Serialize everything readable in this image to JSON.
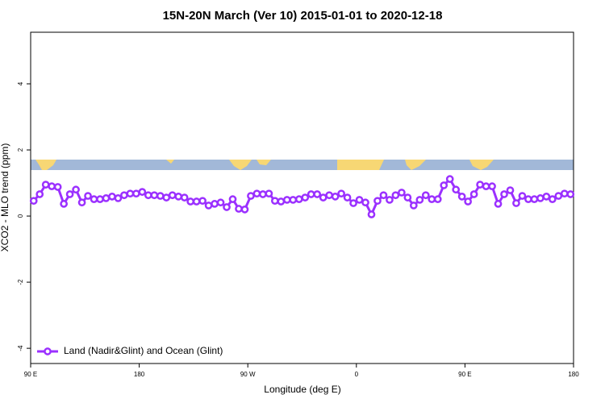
{
  "chart_data": {
    "type": "line",
    "title": "15N-20N March (Ver 10)   2015-01-01 to 2020-12-18",
    "x_label": "Longitude (deg E)",
    "y_label": "XCO2 - MLO trend (ppm)",
    "xlim": [
      90,
      540
    ],
    "xticks": [
      {
        "value": 90,
        "label": "90 E"
      },
      {
        "value": 180,
        "label": "180"
      },
      {
        "value": 270,
        "label": "90 W"
      },
      {
        "value": 360,
        "label": "0"
      },
      {
        "value": 450,
        "label": "90 E"
      },
      {
        "value": 540,
        "label": "180"
      }
    ],
    "ylim": [
      -4.46,
      5.56
    ],
    "yticks": [
      -4,
      -2,
      0,
      2,
      4
    ],
    "legend": "bottom-left",
    "x": [
      92.5,
      97.5,
      102.5,
      107.5,
      112.5,
      117.5,
      122.5,
      127.5,
      132.5,
      137.5,
      142.5,
      147.5,
      152.5,
      157.5,
      162.5,
      167.5,
      172.5,
      177.5,
      182.5,
      187.5,
      192.5,
      197.5,
      202.5,
      207.5,
      212.5,
      217.5,
      222.5,
      227.5,
      232.5,
      237.5,
      242.5,
      247.5,
      252.5,
      257.5,
      262.5,
      267.5,
      272.5,
      277.5,
      282.5,
      287.5,
      292.5,
      297.5,
      302.5,
      307.5,
      312.5,
      317.5,
      322.5,
      327.5,
      332.5,
      337.5,
      342.5,
      347.5,
      352.5,
      357.5,
      362.5,
      367.5,
      372.5,
      377.5,
      382.5,
      387.5,
      392.5,
      397.5,
      402.5,
      407.5,
      412.5,
      417.5,
      422.5,
      427.5,
      432.5,
      437.5,
      442.5,
      447.5,
      452.5,
      457.5,
      462.5,
      467.5,
      472.5,
      477.5,
      482.5,
      487.5,
      492.5,
      497.5,
      502.5,
      507.5,
      512.5,
      517.5,
      522.5,
      527.5,
      532.5,
      537.5
    ],
    "series": [
      {
        "name": "Land (Nadir&Glint) and Ocean (Glint)",
        "color": "#9b30ff",
        "values": [
          0.46,
          0.66,
          0.95,
          0.9,
          0.88,
          0.37,
          0.66,
          0.8,
          0.41,
          0.61,
          0.51,
          0.51,
          0.54,
          0.59,
          0.54,
          0.63,
          0.68,
          0.68,
          0.73,
          0.63,
          0.63,
          0.61,
          0.56,
          0.63,
          0.59,
          0.56,
          0.44,
          0.44,
          0.46,
          0.32,
          0.37,
          0.41,
          0.27,
          0.51,
          0.22,
          0.2,
          0.61,
          0.68,
          0.66,
          0.68,
          0.46,
          0.44,
          0.49,
          0.49,
          0.51,
          0.56,
          0.66,
          0.66,
          0.56,
          0.63,
          0.59,
          0.68,
          0.56,
          0.39,
          0.49,
          0.41,
          0.05,
          0.46,
          0.63,
          0.49,
          0.63,
          0.71,
          0.56,
          0.32,
          0.49,
          0.63,
          0.51,
          0.51,
          0.93,
          1.12,
          0.8,
          0.59,
          0.44,
          0.66,
          0.95,
          0.9,
          0.9,
          0.37,
          0.66,
          0.78,
          0.39,
          0.61,
          0.51,
          0.51,
          0.54,
          0.59,
          0.51,
          0.61,
          0.68,
          0.66
        ]
      }
    ]
  }
}
